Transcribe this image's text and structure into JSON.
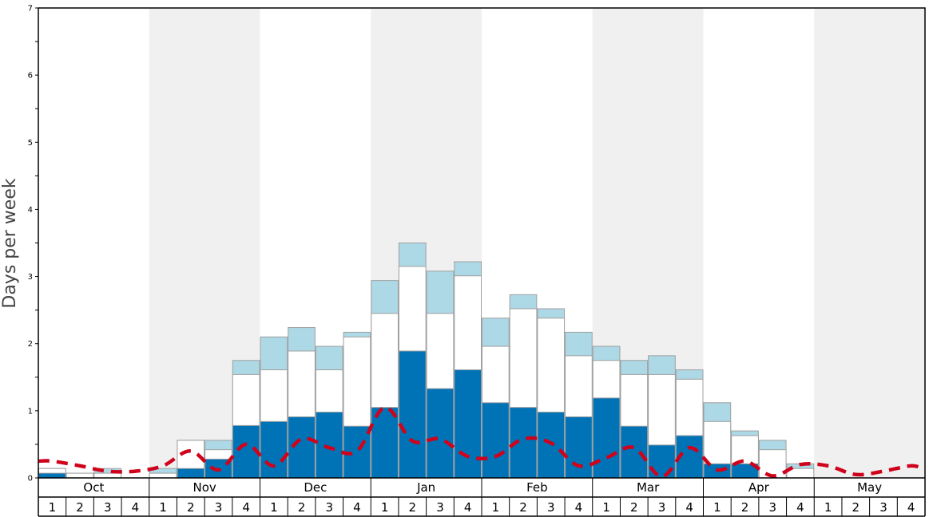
{
  "chart_data": {
    "type": "bar",
    "ylabel": "Days per week",
    "ylim": [
      0,
      7
    ],
    "yticks": [
      0,
      1,
      2,
      3,
      4,
      5,
      6,
      7
    ],
    "months": [
      "Oct",
      "Nov",
      "Dec",
      "Jan",
      "Feb",
      "Mar",
      "Apr",
      "May"
    ],
    "weeks": [
      "1",
      "2",
      "3",
      "4"
    ],
    "shaded_months": [
      "Nov",
      "Jan",
      "Mar",
      "May"
    ],
    "colors": {
      "dark_bar": "#0073b7",
      "white_bar": "#ffffff",
      "light_bar": "#add8e6",
      "dashed_line": "#d0021b",
      "shade": "#f0f0f0",
      "bar_border": "#a0a0a0"
    },
    "series": [
      {
        "values": [
          0.07,
          0,
          0,
          0,
          0,
          0.14,
          0.28,
          0.78,
          0.84,
          0.91,
          0.98,
          0.77,
          1.05,
          1.89,
          1.33,
          1.61,
          1.12,
          1.05,
          0.98,
          0.91,
          1.19,
          0.77,
          0.49,
          0.63,
          0.21,
          0.21,
          0,
          0,
          0,
          0,
          0,
          0
        ]
      },
      {
        "values": [
          0.14,
          0.07,
          0.07,
          0,
          0.07,
          0.56,
          0.42,
          1.54,
          1.61,
          1.89,
          1.61,
          2.1,
          2.45,
          3.15,
          2.45,
          3.01,
          1.96,
          2.52,
          2.38,
          1.82,
          1.75,
          1.54,
          1.54,
          1.47,
          0.84,
          0.63,
          0.42,
          0.14,
          0,
          0,
          0,
          0
        ]
      },
      {
        "values": [
          0.14,
          0.07,
          0.14,
          0,
          0.14,
          0.56,
          0.56,
          1.75,
          2.1,
          2.24,
          1.96,
          2.17,
          2.94,
          3.5,
          3.08,
          3.22,
          2.38,
          2.73,
          2.52,
          2.17,
          1.96,
          1.75,
          1.82,
          1.61,
          1.12,
          0.7,
          0.56,
          0.21,
          0,
          0,
          0,
          0
        ]
      },
      {
        "values": [
          0.25,
          0.18,
          0.1,
          0.1,
          0.18,
          0.4,
          0.12,
          0.5,
          0.18,
          0.58,
          0.45,
          0.4,
          1.05,
          0.55,
          0.58,
          0.32,
          0.32,
          0.58,
          0.52,
          0.18,
          0.3,
          0.45,
          0.02,
          0.45,
          0.12,
          0.25,
          0.03,
          0.2,
          0.18,
          0.05,
          0.1,
          0.18
        ]
      }
    ]
  }
}
